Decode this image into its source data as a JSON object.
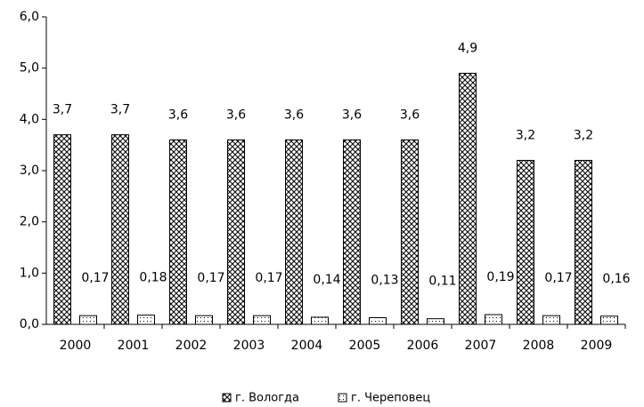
{
  "chart_data": {
    "type": "bar",
    "categories": [
      "2000",
      "2001",
      "2002",
      "2003",
      "2004",
      "2005",
      "2006",
      "2007",
      "2008",
      "2009"
    ],
    "series": [
      {
        "name": "г. Вологда",
        "color": "#000000",
        "values": [
          3.7,
          3.7,
          3.6,
          3.6,
          3.6,
          3.6,
          3.6,
          4.9,
          3.2,
          3.2
        ],
        "value_labels": [
          "3,7",
          "3,7",
          "3,6",
          "3,6",
          "3,6",
          "3,6",
          "3,6",
          "4,9",
          "3,2",
          "3,2"
        ]
      },
      {
        "name": "г. Череповец",
        "color": "#000000",
        "values": [
          0.17,
          0.18,
          0.17,
          0.17,
          0.14,
          0.13,
          0.11,
          0.19,
          0.17,
          0.16
        ],
        "value_labels": [
          "0,17",
          "0,18",
          "0,17",
          "0,17",
          "0,14",
          "0,13",
          "0,11",
          "0,19",
          "0,17",
          "0,16"
        ]
      }
    ],
    "ylim": [
      0,
      6
    ],
    "yticks": [
      {
        "value": 0,
        "label": "0,0"
      },
      {
        "value": 1,
        "label": "1,0"
      },
      {
        "value": 2,
        "label": "2,0"
      },
      {
        "value": 3,
        "label": "3,0"
      },
      {
        "value": 4,
        "label": "4,0"
      },
      {
        "value": 5,
        "label": "5,0"
      },
      {
        "value": 6,
        "label": "6,0"
      }
    ],
    "legend": "bottom"
  }
}
